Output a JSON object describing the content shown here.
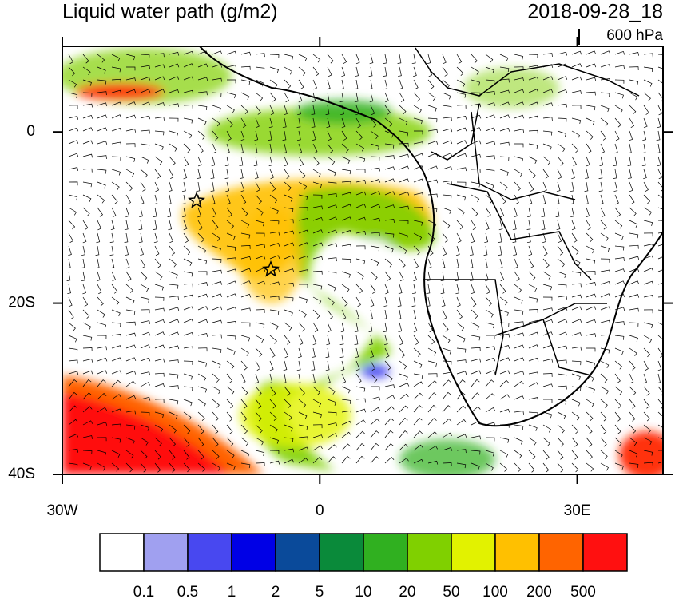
{
  "title": "Liquid water path (g/m2)",
  "date": "2018-09-28_18",
  "level": "600 hPa",
  "map": {
    "lonlim": [
      -30,
      40
    ],
    "latlim": [
      -40,
      10
    ],
    "lon_ticks": [
      {
        "value": -30,
        "label": "30W"
      },
      {
        "value": 0,
        "label": "0"
      },
      {
        "value": 30,
        "label": "30E"
      }
    ],
    "lat_ticks": [
      {
        "value": 0,
        "label": "0"
      },
      {
        "value": -20,
        "label": "20S"
      },
      {
        "value": -40,
        "label": "40S"
      }
    ]
  },
  "colorbar": {
    "colors": [
      "#ffffff",
      "#a0a0f0",
      "#4848f0",
      "#0000e6",
      "#0a4a9a",
      "#0a8a3a",
      "#30b020",
      "#80d000",
      "#e2f200",
      "#ffc000",
      "#ff6400",
      "#ff1010"
    ],
    "labels": [
      "0.1",
      "0.5",
      "1",
      "2",
      "5",
      "10",
      "20",
      "50",
      "100",
      "200",
      "500"
    ]
  }
}
